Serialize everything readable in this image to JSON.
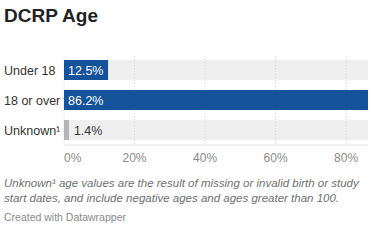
{
  "chart_data": {
    "type": "bar",
    "orientation": "horizontal",
    "title": "DCRP Age",
    "categories": [
      "Under 18",
      "18 or over",
      "Unknown¹"
    ],
    "values": [
      12.5,
      86.2,
      1.4
    ],
    "value_labels": [
      "12.5%",
      "86.2%",
      "1.4%"
    ],
    "colors": [
      "#15529c",
      "#15529c",
      "#b5b5b5"
    ],
    "data_labels": true,
    "xlim": [
      0,
      86.2
    ],
    "xticks": [
      {
        "value": 0,
        "label": "0%"
      },
      {
        "value": 20,
        "label": "20%"
      },
      {
        "value": 40,
        "label": "40%"
      },
      {
        "value": 60,
        "label": "60%"
      },
      {
        "value": 80,
        "label": "80%"
      }
    ],
    "grid": true,
    "annotations": [
      "Unknown¹ age values are the result of missing or invalid birth or study start dates, and include negative ages and ages greater than 100.",
      "Created with Datawrapper"
    ]
  }
}
